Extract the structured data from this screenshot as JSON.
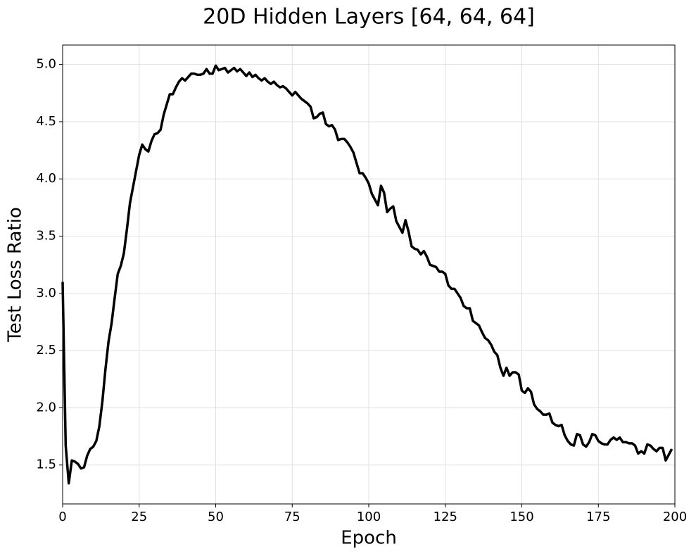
{
  "chart_data": {
    "type": "line",
    "title": "20D Hidden Layers [64, 64, 64]",
    "x_label": "Epoch",
    "y_label": "Test Loss Ratio",
    "x": [
      0,
      1,
      2,
      3,
      4,
      5,
      6,
      7,
      8,
      9,
      10,
      11,
      12,
      13,
      14,
      15,
      16,
      17,
      18,
      19,
      20,
      21,
      22,
      23,
      24,
      25,
      26,
      27,
      28,
      29,
      30,
      31,
      32,
      33,
      34,
      35,
      36,
      37,
      38,
      39,
      40,
      41,
      42,
      43,
      44,
      45,
      46,
      47,
      48,
      49,
      50,
      51,
      52,
      53,
      54,
      55,
      56,
      57,
      58,
      59,
      60,
      61,
      62,
      63,
      64,
      65,
      66,
      67,
      68,
      69,
      70,
      71,
      72,
      73,
      74,
      75,
      76,
      77,
      78,
      79,
      80,
      81,
      82,
      83,
      84,
      85,
      86,
      87,
      88,
      89,
      90,
      91,
      92,
      93,
      94,
      95,
      96,
      97,
      98,
      99,
      100,
      101,
      102,
      103,
      104,
      105,
      106,
      107,
      108,
      109,
      110,
      111,
      112,
      113,
      114,
      115,
      116,
      117,
      118,
      119,
      120,
      121,
      122,
      123,
      124,
      125,
      126,
      127,
      128,
      129,
      130,
      131,
      132,
      133,
      134,
      135,
      136,
      137,
      138,
      139,
      140,
      141,
      142,
      143,
      144,
      145,
      146,
      147,
      148,
      149,
      150,
      151,
      152,
      153,
      154,
      155,
      156,
      157,
      158,
      159,
      160,
      161,
      162,
      163,
      164,
      165,
      166,
      167,
      168,
      169,
      170,
      171,
      172,
      173,
      174,
      175,
      176,
      177,
      178,
      179,
      180,
      181,
      182,
      183,
      184,
      185,
      186,
      187,
      188,
      189,
      190,
      191,
      192,
      193,
      194,
      195,
      196,
      197,
      198,
      199
    ],
    "series": [
      {
        "color": "#000000",
        "values": [
          3.1,
          1.67,
          1.34,
          1.54,
          1.53,
          1.51,
          1.47,
          1.48,
          1.58,
          1.64,
          1.66,
          1.71,
          1.84,
          2.06,
          2.34,
          2.58,
          2.74,
          2.96,
          3.17,
          3.24,
          3.35,
          3.56,
          3.79,
          3.93,
          4.07,
          4.21,
          4.3,
          4.26,
          4.24,
          4.33,
          4.39,
          4.4,
          4.43,
          4.56,
          4.65,
          4.74,
          4.74,
          4.8,
          4.85,
          4.88,
          4.86,
          4.89,
          4.92,
          4.92,
          4.91,
          4.91,
          4.92,
          4.96,
          4.92,
          4.92,
          4.99,
          4.95,
          4.96,
          4.97,
          4.93,
          4.95,
          4.97,
          4.94,
          4.96,
          4.93,
          4.9,
          4.93,
          4.89,
          4.91,
          4.88,
          4.86,
          4.88,
          4.85,
          4.83,
          4.85,
          4.82,
          4.8,
          4.81,
          4.79,
          4.76,
          4.73,
          4.76,
          4.73,
          4.7,
          4.68,
          4.66,
          4.63,
          4.53,
          4.54,
          4.57,
          4.58,
          4.48,
          4.46,
          4.47,
          4.43,
          4.34,
          4.35,
          4.35,
          4.32,
          4.28,
          4.23,
          4.14,
          4.05,
          4.05,
          4.01,
          3.96,
          3.87,
          3.82,
          3.77,
          3.94,
          3.88,
          3.71,
          3.74,
          3.76,
          3.63,
          3.58,
          3.53,
          3.64,
          3.54,
          3.41,
          3.39,
          3.38,
          3.34,
          3.37,
          3.32,
          3.25,
          3.24,
          3.23,
          3.19,
          3.19,
          3.17,
          3.07,
          3.04,
          3.04,
          3.0,
          2.96,
          2.89,
          2.87,
          2.87,
          2.76,
          2.74,
          2.72,
          2.66,
          2.61,
          2.59,
          2.55,
          2.49,
          2.46,
          2.35,
          2.28,
          2.35,
          2.28,
          2.31,
          2.31,
          2.29,
          2.15,
          2.13,
          2.17,
          2.14,
          2.03,
          1.99,
          1.97,
          1.94,
          1.94,
          1.95,
          1.87,
          1.85,
          1.84,
          1.85,
          1.76,
          1.71,
          1.68,
          1.67,
          1.77,
          1.76,
          1.68,
          1.66,
          1.7,
          1.77,
          1.76,
          1.71,
          1.69,
          1.68,
          1.68,
          1.72,
          1.74,
          1.72,
          1.74,
          1.7,
          1.7,
          1.69,
          1.69,
          1.67,
          1.6,
          1.62,
          1.6,
          1.68,
          1.67,
          1.64,
          1.62,
          1.65,
          1.65,
          1.54,
          1.59,
          1.64
        ]
      }
    ],
    "xlim": [
      0,
      200
    ],
    "xticks": [
      0,
      25,
      50,
      75,
      100,
      125,
      150,
      175,
      200
    ],
    "ylim": [
      1.16,
      5.17
    ],
    "yticks": [
      1.5,
      {
        "value": 2,
        "label": "2.0"
      },
      2.5,
      {
        "value": 3,
        "label": "3.0"
      },
      3.5,
      {
        "value": 4,
        "label": "4.0"
      },
      4.5,
      {
        "value": 5,
        "label": "5.0"
      }
    ],
    "grid": true
  }
}
